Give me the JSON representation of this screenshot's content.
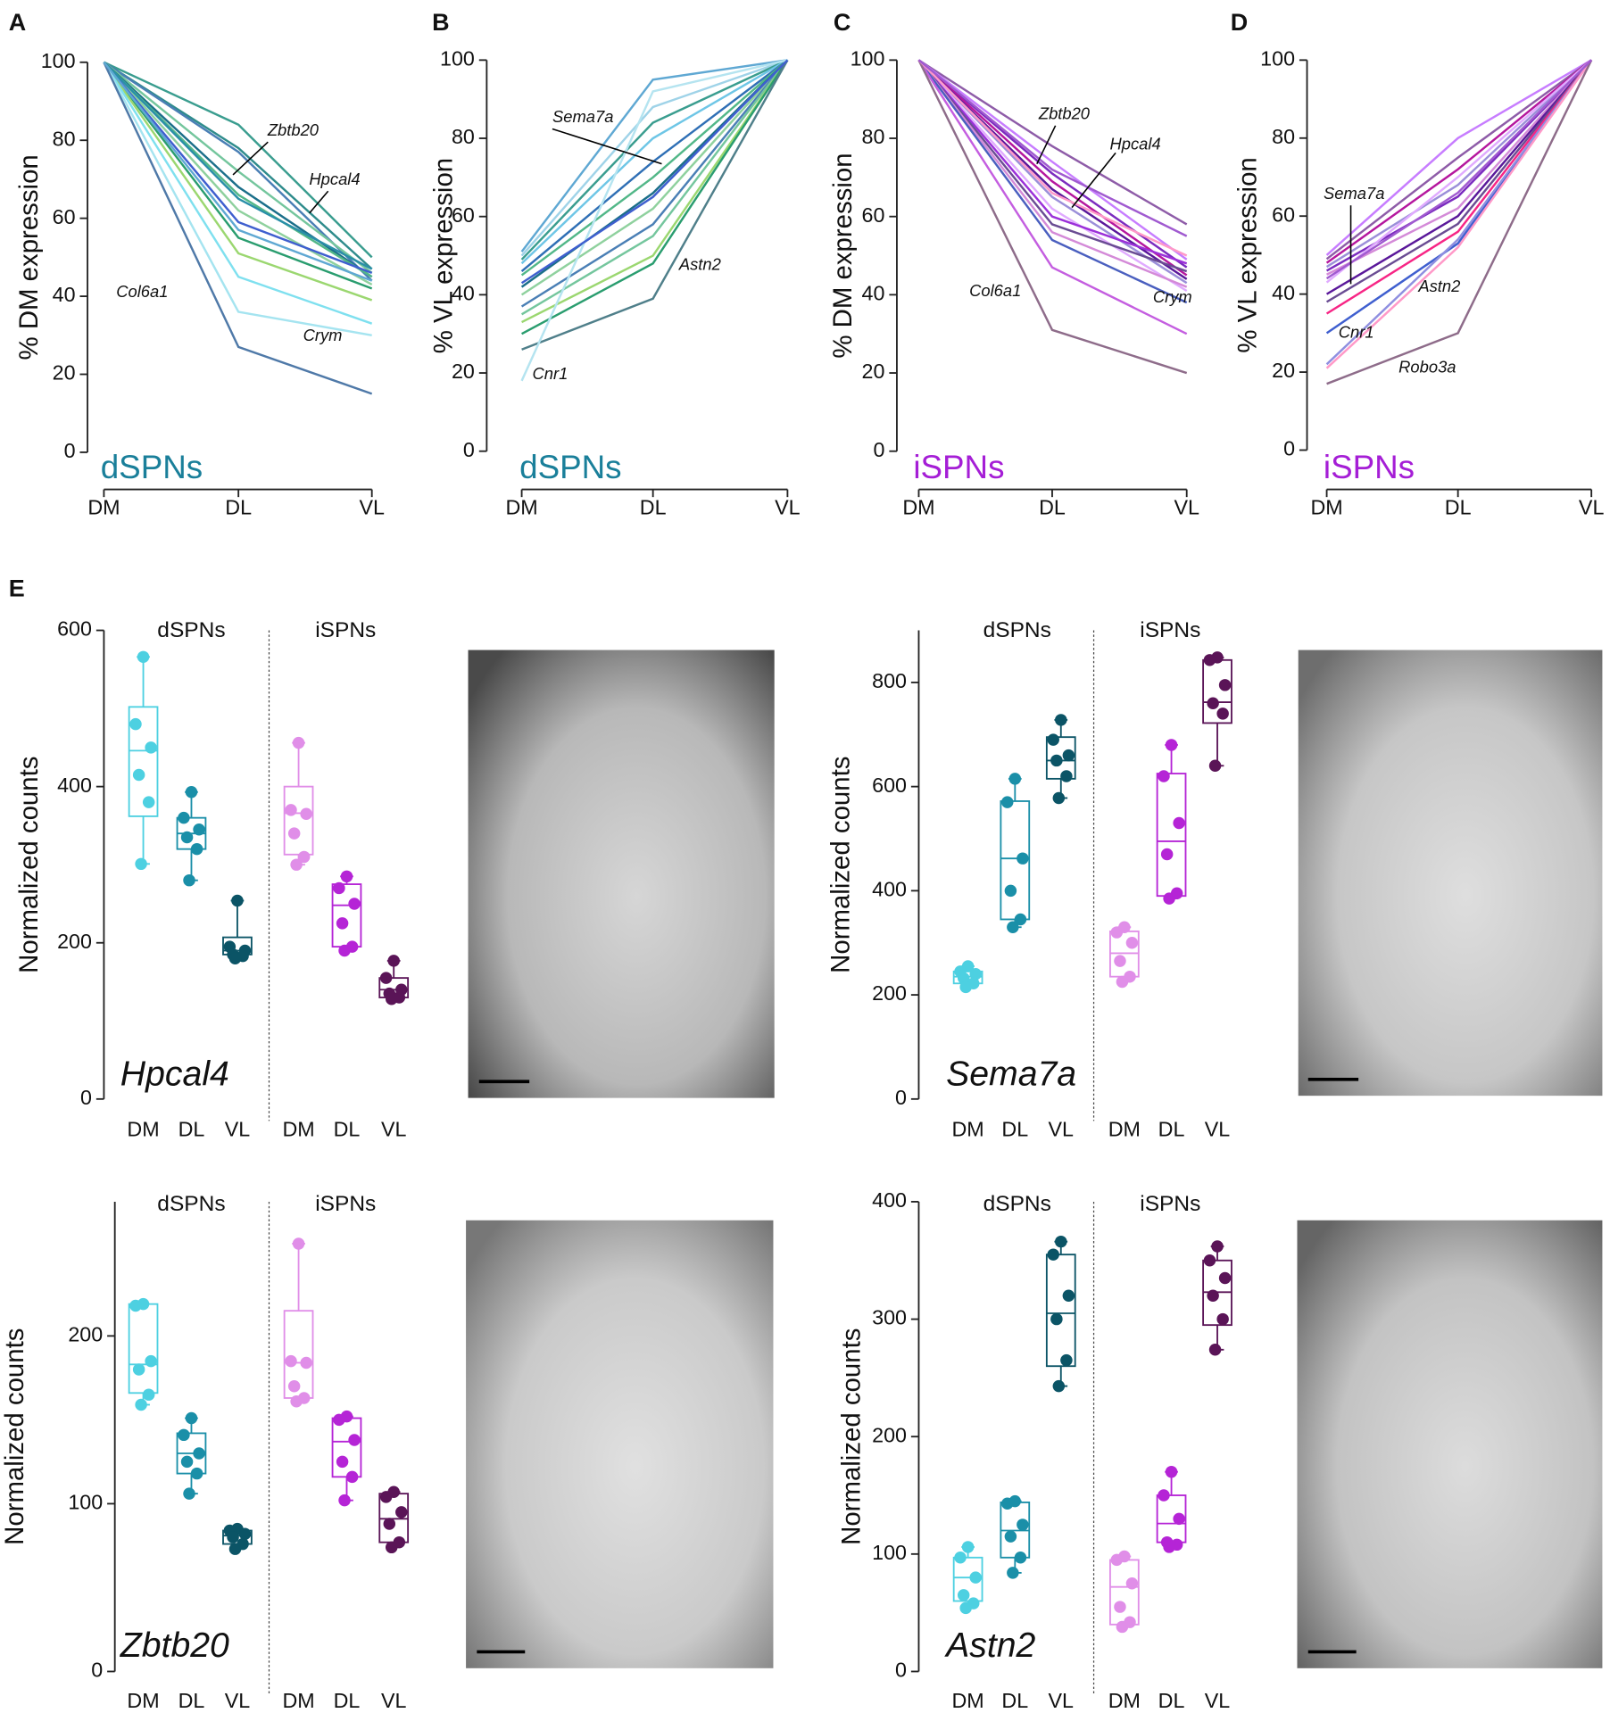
{
  "chart_data": [
    {
      "type": "line",
      "panel": "A",
      "group_label": "dSPNs",
      "ylabel": "% DM expression",
      "categories": [
        "DM",
        "DL",
        "VL"
      ],
      "ylim": [
        0,
        100
      ],
      "yticks": [
        0,
        20,
        40,
        60,
        80,
        100
      ],
      "color": "#1a7f9a",
      "annotations": [
        "Zbtb20",
        "Hpcal4",
        "Col6a1",
        "Crym"
      ],
      "series": [
        {
          "color": "#3a9d8f",
          "values": [
            100,
            84,
            50
          ]
        },
        {
          "color": "#2f8c8c",
          "values": [
            100,
            78,
            47
          ]
        },
        {
          "color": "#4a7fb5",
          "values": [
            100,
            77,
            44
          ]
        },
        {
          "color": "#74c69d",
          "values": [
            100,
            72,
            46
          ]
        },
        {
          "color": "#1b6f8a",
          "values": [
            100,
            68,
            45
          ]
        },
        {
          "color": "#52b788",
          "values": [
            100,
            66,
            45
          ]
        },
        {
          "color": "#8fd19e",
          "values": [
            100,
            62,
            43
          ]
        },
        {
          "color": "#3f5fcf",
          "values": [
            100,
            59,
            46
          ]
        },
        {
          "color": "#2a9d6f",
          "values": [
            100,
            55,
            42
          ]
        },
        {
          "color": "#9bd770",
          "values": [
            100,
            51,
            39
          ]
        },
        {
          "color": "#7fe0ef",
          "values": [
            100,
            45,
            33
          ]
        },
        {
          "color": "#a5e4f0",
          "values": [
            100,
            36,
            30
          ]
        },
        {
          "color": "#4f79a8",
          "values": [
            100,
            27,
            15
          ]
        },
        {
          "color": "#2a8fa8",
          "values": [
            100,
            65,
            47
          ]
        },
        {
          "color": "#5fa8d3",
          "values": [
            100,
            57,
            44
          ]
        }
      ]
    },
    {
      "type": "line",
      "panel": "B",
      "group_label": "dSPNs",
      "ylabel": "% VL expression",
      "categories": [
        "DM",
        "DL",
        "VL"
      ],
      "ylim": [
        0,
        100
      ],
      "yticks": [
        0,
        20,
        40,
        60,
        80,
        100
      ],
      "color": "#1a7f9a",
      "annotations": [
        "Sema7a",
        "Astn2",
        "Cnr1"
      ],
      "series": [
        {
          "color": "#5fa8d3",
          "values": [
            51,
            95,
            100
          ]
        },
        {
          "color": "#9fd3e8",
          "values": [
            50,
            88,
            100
          ]
        },
        {
          "color": "#3a9d8f",
          "values": [
            49,
            84,
            100
          ]
        },
        {
          "color": "#6ec6e6",
          "values": [
            48,
            80,
            100
          ]
        },
        {
          "color": "#2f6fb5",
          "values": [
            46,
            74,
            100
          ]
        },
        {
          "color": "#52b788",
          "values": [
            45,
            70,
            100
          ]
        },
        {
          "color": "#1b6f8a",
          "values": [
            42,
            66,
            100
          ]
        },
        {
          "color": "#8fd19e",
          "values": [
            40,
            62,
            100
          ]
        },
        {
          "color": "#4a7fb5",
          "values": [
            37,
            58,
            100
          ]
        },
        {
          "color": "#74c69d",
          "values": [
            35,
            55,
            100
          ]
        },
        {
          "color": "#9bd770",
          "values": [
            33,
            50,
            100
          ]
        },
        {
          "color": "#2a9d6f",
          "values": [
            30,
            48,
            100
          ]
        },
        {
          "color": "#4f7f8a",
          "values": [
            26,
            39,
            100
          ]
        },
        {
          "color": "#b5e4f0",
          "values": [
            18,
            92,
            100
          ]
        },
        {
          "color": "#3f5fcf",
          "values": [
            43,
            65,
            100
          ]
        }
      ]
    },
    {
      "type": "line",
      "panel": "C",
      "group_label": "iSPNs",
      "ylabel": "% DM expression",
      "categories": [
        "DM",
        "DL",
        "VL"
      ],
      "ylim": [
        0,
        100
      ],
      "yticks": [
        0,
        20,
        40,
        60,
        80,
        100
      ],
      "color": "#a51ed6",
      "annotations": [
        "Zbtb20",
        "Hpcal4",
        "Col6a1",
        "Crym"
      ],
      "series": [
        {
          "color": "#8e5ca8",
          "values": [
            100,
            78,
            58
          ]
        },
        {
          "color": "#c77dff",
          "values": [
            100,
            74,
            49
          ]
        },
        {
          "color": "#7b2cbf",
          "values": [
            100,
            71,
            47
          ]
        },
        {
          "color": "#b5179e",
          "values": [
            100,
            69,
            45
          ]
        },
        {
          "color": "#5a189a",
          "values": [
            100,
            67,
            44
          ]
        },
        {
          "color": "#9b8fd9",
          "values": [
            100,
            65,
            43
          ]
        },
        {
          "color": "#e0aaff",
          "values": [
            100,
            62,
            41
          ]
        },
        {
          "color": "#9b30d9",
          "values": [
            100,
            60,
            48
          ]
        },
        {
          "color": "#6a4c93",
          "values": [
            100,
            58,
            46
          ]
        },
        {
          "color": "#d48ad8",
          "values": [
            100,
            56,
            42
          ]
        },
        {
          "color": "#4a5fbf",
          "values": [
            100,
            54,
            38
          ]
        },
        {
          "color": "#c45ee0",
          "values": [
            100,
            47,
            30
          ]
        },
        {
          "color": "#8e6c8a",
          "values": [
            100,
            31,
            20
          ]
        },
        {
          "color": "#ff99c8",
          "values": [
            100,
            66,
            50
          ]
        },
        {
          "color": "#a05ad0",
          "values": [
            100,
            72,
            55
          ]
        }
      ]
    },
    {
      "type": "line",
      "panel": "D",
      "group_label": "iSPNs",
      "ylabel": "% VL expression",
      "categories": [
        "DM",
        "DL",
        "VL"
      ],
      "ylim": [
        0,
        100
      ],
      "yticks": [
        0,
        20,
        40,
        60,
        80,
        100
      ],
      "color": "#a51ed6",
      "annotations": [
        "Sema7a",
        "Astn2",
        "Cnr1",
        "Robo3a"
      ],
      "series": [
        {
          "color": "#c77dff",
          "values": [
            50,
            80,
            100
          ]
        },
        {
          "color": "#8e5ca8",
          "values": [
            49,
            75,
            100
          ]
        },
        {
          "color": "#b5179e",
          "values": [
            48,
            72,
            100
          ]
        },
        {
          "color": "#9b8fd9",
          "values": [
            47,
            68,
            100
          ]
        },
        {
          "color": "#7b2cbf",
          "values": [
            46,
            65,
            100
          ]
        },
        {
          "color": "#d48ad8",
          "values": [
            45,
            62,
            100
          ]
        },
        {
          "color": "#e0aaff",
          "values": [
            43,
            70,
            100
          ]
        },
        {
          "color": "#5a189a",
          "values": [
            40,
            60,
            100
          ]
        },
        {
          "color": "#6a4c93",
          "values": [
            38,
            58,
            100
          ]
        },
        {
          "color": "#f72585",
          "values": [
            35,
            56,
            100
          ]
        },
        {
          "color": "#3f5fcf",
          "values": [
            30,
            53,
            100
          ]
        },
        {
          "color": "#8f8fe0",
          "values": [
            22,
            54,
            100
          ]
        },
        {
          "color": "#ff99c8",
          "values": [
            21,
            52,
            100
          ]
        },
        {
          "color": "#8e6c8a",
          "values": [
            17,
            30,
            100
          ]
        },
        {
          "color": "#a05ad0",
          "values": [
            44,
            66,
            100
          ]
        }
      ]
    },
    {
      "type": "box",
      "panel": "E",
      "title": "Hpcal4",
      "ylabel": "Normalized counts",
      "groups": [
        "dSPNs",
        "iSPNs"
      ],
      "categories": [
        "DM",
        "DL",
        "VL",
        "DM",
        "DL",
        "VL"
      ],
      "ylim": [
        0,
        600
      ],
      "yticks": [
        0,
        200,
        400,
        600
      ],
      "boxes": [
        {
          "color": "#4dd0e1",
          "min": 301,
          "q1": 362,
          "median": 446,
          "q3": 502,
          "max": 566,
          "points": [
            566,
            480,
            450,
            415,
            380,
            301
          ]
        },
        {
          "color": "#1a8fa8",
          "min": 280,
          "q1": 320,
          "median": 340,
          "q3": 360,
          "max": 393,
          "points": [
            393,
            360,
            345,
            335,
            320,
            280
          ]
        },
        {
          "color": "#0b5466",
          "min": 180,
          "q1": 185,
          "median": 190,
          "q3": 207,
          "max": 254,
          "points": [
            254,
            195,
            190,
            185,
            183,
            180
          ]
        },
        {
          "color": "#e08ee8",
          "min": 300,
          "q1": 313,
          "median": 366,
          "q3": 400,
          "max": 456,
          "points": [
            456,
            370,
            365,
            340,
            310,
            300
          ]
        },
        {
          "color": "#b524d6",
          "min": 190,
          "q1": 195,
          "median": 248,
          "q3": 275,
          "max": 285,
          "points": [
            285,
            270,
            250,
            225,
            195,
            190
          ]
        },
        {
          "color": "#5a1457",
          "min": 128,
          "q1": 130,
          "median": 140,
          "q3": 155,
          "max": 177,
          "points": [
            177,
            155,
            140,
            135,
            130,
            128
          ]
        }
      ]
    },
    {
      "type": "box",
      "title": "Sema7a",
      "ylabel": "Normalized counts",
      "groups": [
        "dSPNs",
        "iSPNs"
      ],
      "categories": [
        "DM",
        "DL",
        "VL",
        "DM",
        "DL",
        "VL"
      ],
      "ylim": [
        0,
        900
      ],
      "yticks": [
        0,
        200,
        400,
        600,
        800
      ],
      "boxes": [
        {
          "color": "#4dd0e1",
          "min": 215,
          "q1": 222,
          "median": 235,
          "q3": 245,
          "max": 255,
          "points": [
            255,
            245,
            240,
            232,
            222,
            215
          ]
        },
        {
          "color": "#1a8fa8",
          "min": 330,
          "q1": 345,
          "median": 462,
          "q3": 572,
          "max": 615,
          "points": [
            615,
            570,
            462,
            400,
            345,
            330
          ]
        },
        {
          "color": "#0b5466",
          "min": 578,
          "q1": 615,
          "median": 650,
          "q3": 695,
          "max": 728,
          "points": [
            728,
            690,
            660,
            650,
            620,
            578
          ]
        },
        {
          "color": "#e08ee8",
          "min": 225,
          "q1": 235,
          "median": 280,
          "q3": 322,
          "max": 330,
          "points": [
            330,
            320,
            300,
            265,
            235,
            225
          ]
        },
        {
          "color": "#b524d6",
          "min": 385,
          "q1": 390,
          "median": 495,
          "q3": 625,
          "max": 680,
          "points": [
            680,
            620,
            530,
            470,
            395,
            385
          ]
        },
        {
          "color": "#5a1457",
          "min": 640,
          "q1": 722,
          "median": 762,
          "q3": 843,
          "max": 848,
          "points": [
            848,
            843,
            795,
            760,
            740,
            640
          ]
        }
      ]
    },
    {
      "type": "box",
      "title": "Zbtb20",
      "ylabel": "Normalized counts",
      "groups": [
        "dSPNs",
        "iSPNs"
      ],
      "categories": [
        "DM",
        "DL",
        "VL",
        "DM",
        "DL",
        "VL"
      ],
      "ylim": [
        0,
        280
      ],
      "yticks": [
        0,
        100,
        200
      ],
      "boxes": [
        {
          "color": "#4dd0e1",
          "min": 159,
          "q1": 166,
          "median": 183,
          "q3": 219,
          "max": 219,
          "points": [
            219,
            218,
            185,
            180,
            165,
            159
          ]
        },
        {
          "color": "#1a8fa8",
          "min": 106,
          "q1": 118,
          "median": 130,
          "q3": 142,
          "max": 151,
          "points": [
            151,
            141,
            130,
            125,
            118,
            106
          ]
        },
        {
          "color": "#0b5466",
          "min": 73,
          "q1": 76,
          "median": 81,
          "q3": 84,
          "max": 85,
          "points": [
            85,
            84,
            82,
            80,
            76,
            73
          ]
        },
        {
          "color": "#e08ee8",
          "min": 161,
          "q1": 163,
          "median": 184,
          "q3": 215,
          "max": 255,
          "points": [
            255,
            185,
            184,
            170,
            163,
            161
          ]
        },
        {
          "color": "#b524d6",
          "min": 102,
          "q1": 116,
          "median": 137,
          "q3": 151,
          "max": 152,
          "points": [
            152,
            150,
            138,
            125,
            116,
            102
          ]
        },
        {
          "color": "#5a1457",
          "min": 74,
          "q1": 77,
          "median": 91,
          "q3": 106,
          "max": 107,
          "points": [
            107,
            104,
            95,
            88,
            77,
            74
          ]
        }
      ]
    },
    {
      "type": "box",
      "title": "Astn2",
      "ylabel": "Normalized counts",
      "groups": [
        "dSPNs",
        "iSPNs"
      ],
      "categories": [
        "DM",
        "DL",
        "VL",
        "DM",
        "DL",
        "VL"
      ],
      "ylim": [
        0,
        400
      ],
      "yticks": [
        0,
        100,
        200,
        300,
        400
      ],
      "boxes": [
        {
          "color": "#4dd0e1",
          "min": 54,
          "q1": 60,
          "median": 80,
          "q3": 97,
          "max": 106,
          "points": [
            106,
            97,
            80,
            65,
            58,
            54
          ]
        },
        {
          "color": "#1a8fa8",
          "min": 84,
          "q1": 97,
          "median": 120,
          "q3": 144,
          "max": 145,
          "points": [
            145,
            143,
            125,
            115,
            97,
            84
          ]
        },
        {
          "color": "#0b5466",
          "min": 243,
          "q1": 260,
          "median": 305,
          "q3": 355,
          "max": 366,
          "points": [
            366,
            355,
            320,
            300,
            265,
            243
          ]
        },
        {
          "color": "#e08ee8",
          "min": 38,
          "q1": 40,
          "median": 72,
          "q3": 95,
          "max": 98,
          "points": [
            98,
            95,
            75,
            55,
            42,
            38
          ]
        },
        {
          "color": "#b524d6",
          "min": 106,
          "q1": 110,
          "median": 126,
          "q3": 150,
          "max": 170,
          "points": [
            170,
            150,
            130,
            110,
            108,
            106
          ]
        },
        {
          "color": "#5a1457",
          "min": 274,
          "q1": 295,
          "median": 323,
          "q3": 350,
          "max": 362,
          "points": [
            362,
            350,
            335,
            320,
            300,
            274
          ]
        }
      ]
    }
  ]
}
